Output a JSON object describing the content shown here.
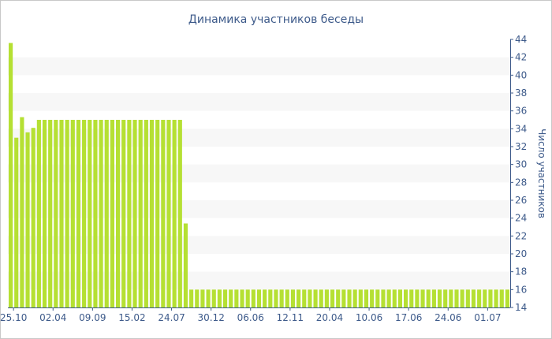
{
  "chart_data": {
    "type": "bar",
    "title": "Динамика участников беседы",
    "ylabel": "Число участников",
    "xlabel": "",
    "ylim": [
      14,
      44
    ],
    "y_ticks": [
      14,
      16,
      18,
      20,
      22,
      24,
      26,
      28,
      30,
      32,
      34,
      36,
      38,
      40,
      42,
      44
    ],
    "y_axis_side": "right",
    "x_tick_labels": [
      "25.10",
      "02.04",
      "09.09",
      "15.02",
      "24.07",
      "30.12",
      "06.06",
      "12.11",
      "20.04",
      "10.06",
      "17.06",
      "24.06",
      "01.07"
    ],
    "grid": "alternating horizontal bands",
    "values": [
      43.6,
      33,
      35.3,
      33.6,
      34.1,
      35,
      35,
      35,
      35,
      35,
      35,
      35,
      35,
      35,
      35,
      35,
      35,
      35,
      35,
      35,
      35,
      35,
      35,
      35,
      35,
      35,
      35,
      35,
      35,
      35,
      35,
      23.4,
      16,
      16,
      16,
      16,
      16,
      16,
      16,
      16,
      16,
      16,
      16,
      16,
      16,
      16,
      16,
      16,
      16,
      16,
      16,
      16,
      16,
      16,
      16,
      16,
      16,
      16,
      16,
      16,
      16,
      16,
      16,
      16,
      16,
      16,
      16,
      16,
      16,
      16,
      16,
      16,
      16,
      16,
      16,
      16,
      16,
      16,
      16,
      16,
      16,
      16,
      16,
      16,
      16,
      16,
      16,
      16,
      16
    ]
  },
  "colors": {
    "bar": "#b5e033",
    "band": "#f7f7f7",
    "text": "#3d5a8a",
    "axis": "#3d5a8a"
  }
}
